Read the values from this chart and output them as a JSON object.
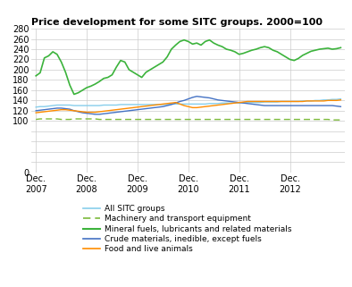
{
  "title": "Price development for some SITC groups. 2000=100",
  "ylim": [
    0,
    280
  ],
  "yticks": [
    0,
    20,
    40,
    60,
    80,
    100,
    120,
    140,
    160,
    180,
    200,
    220,
    240,
    260,
    280
  ],
  "ytick_labels": [
    "0",
    "",
    "",
    "",
    "",
    "100",
    "120",
    "140",
    "160",
    "180",
    "200",
    "220",
    "240",
    "260",
    "280"
  ],
  "xtick_labels": [
    "Dec.\n2007",
    "Dec.\n2008",
    "Dec.\n2009",
    "Dec.\n2010",
    "Dec.\n2011",
    "Dec.\n2012"
  ],
  "xtick_positions": [
    0,
    12,
    24,
    36,
    48,
    60
  ],
  "n_points": 73,
  "all_sitc": [
    127,
    128,
    128,
    129,
    130,
    131,
    131,
    131,
    131,
    130,
    130,
    130,
    130,
    130,
    130,
    130,
    131,
    131,
    131,
    131,
    132,
    132,
    132,
    132,
    132,
    132,
    132,
    132,
    132,
    132,
    132,
    132,
    133,
    133,
    133,
    133,
    133,
    133,
    133,
    133,
    133,
    134,
    134,
    134,
    135,
    135,
    135,
    135,
    135,
    136,
    136,
    136,
    136,
    136,
    137,
    137,
    137,
    137,
    138,
    138,
    138,
    138,
    138,
    139,
    139,
    139,
    140,
    140,
    141,
    141,
    142,
    142,
    143
  ],
  "machinery": [
    103,
    104,
    104,
    104,
    104,
    104,
    103,
    103,
    103,
    104,
    104,
    104,
    104,
    104,
    104,
    103,
    103,
    103,
    103,
    103,
    103,
    103,
    103,
    103,
    103,
    103,
    103,
    103,
    103,
    103,
    103,
    103,
    103,
    103,
    103,
    103,
    103,
    103,
    103,
    103,
    103,
    103,
    103,
    103,
    103,
    103,
    103,
    103,
    103,
    103,
    103,
    103,
    103,
    103,
    103,
    103,
    103,
    103,
    103,
    103,
    103,
    103,
    103,
    103,
    103,
    103,
    103,
    103,
    103,
    103,
    102,
    102,
    102
  ],
  "mineral_fuels": [
    188,
    194,
    223,
    227,
    235,
    230,
    215,
    195,
    170,
    152,
    155,
    160,
    165,
    168,
    172,
    177,
    183,
    185,
    190,
    205,
    218,
    215,
    200,
    195,
    190,
    185,
    195,
    200,
    205,
    210,
    215,
    225,
    240,
    248,
    255,
    258,
    255,
    250,
    252,
    248,
    255,
    258,
    252,
    248,
    245,
    240,
    238,
    235,
    230,
    232,
    235,
    238,
    240,
    243,
    245,
    243,
    238,
    235,
    230,
    225,
    220,
    218,
    222,
    228,
    232,
    236,
    238,
    240,
    241,
    242,
    240,
    241,
    243
  ],
  "crude_materials": [
    120,
    121,
    122,
    123,
    124,
    125,
    125,
    124,
    123,
    120,
    118,
    116,
    115,
    114,
    113,
    113,
    114,
    115,
    116,
    117,
    118,
    119,
    120,
    121,
    122,
    123,
    124,
    125,
    126,
    127,
    128,
    130,
    132,
    135,
    138,
    140,
    143,
    146,
    148,
    147,
    146,
    145,
    143,
    141,
    140,
    139,
    138,
    137,
    136,
    135,
    134,
    133,
    132,
    131,
    130,
    130,
    130,
    130,
    130,
    130,
    130,
    130,
    130,
    130,
    130,
    130,
    130,
    130,
    130,
    130,
    130,
    129,
    128
  ],
  "food": [
    116,
    117,
    118,
    119,
    120,
    121,
    122,
    122,
    121,
    120,
    119,
    118,
    117,
    117,
    117,
    118,
    119,
    120,
    121,
    122,
    123,
    124,
    125,
    126,
    127,
    128,
    129,
    130,
    131,
    132,
    133,
    134,
    135,
    136,
    133,
    130,
    128,
    126,
    126,
    127,
    128,
    129,
    130,
    131,
    132,
    133,
    134,
    135,
    136,
    137,
    138,
    138,
    138,
    138,
    138,
    138,
    138,
    138,
    138,
    138,
    138,
    138,
    138,
    138,
    139,
    139,
    139,
    139,
    139,
    140,
    140,
    140,
    141
  ],
  "colors": {
    "all_sitc": "#87CEEB",
    "machinery": "#7CBA3B",
    "mineral_fuels": "#3CB33C",
    "crude_materials": "#4472C4",
    "food": "#FF8C00"
  },
  "legend_labels": [
    "All SITC groups",
    "Machinery and transport equipment",
    "Mineral fuels, lubricants and related materials",
    "Crude materials, inedible, except fuels",
    "Food and live animals"
  ],
  "bg_color": "#ffffff",
  "grid_color": "#cccccc"
}
